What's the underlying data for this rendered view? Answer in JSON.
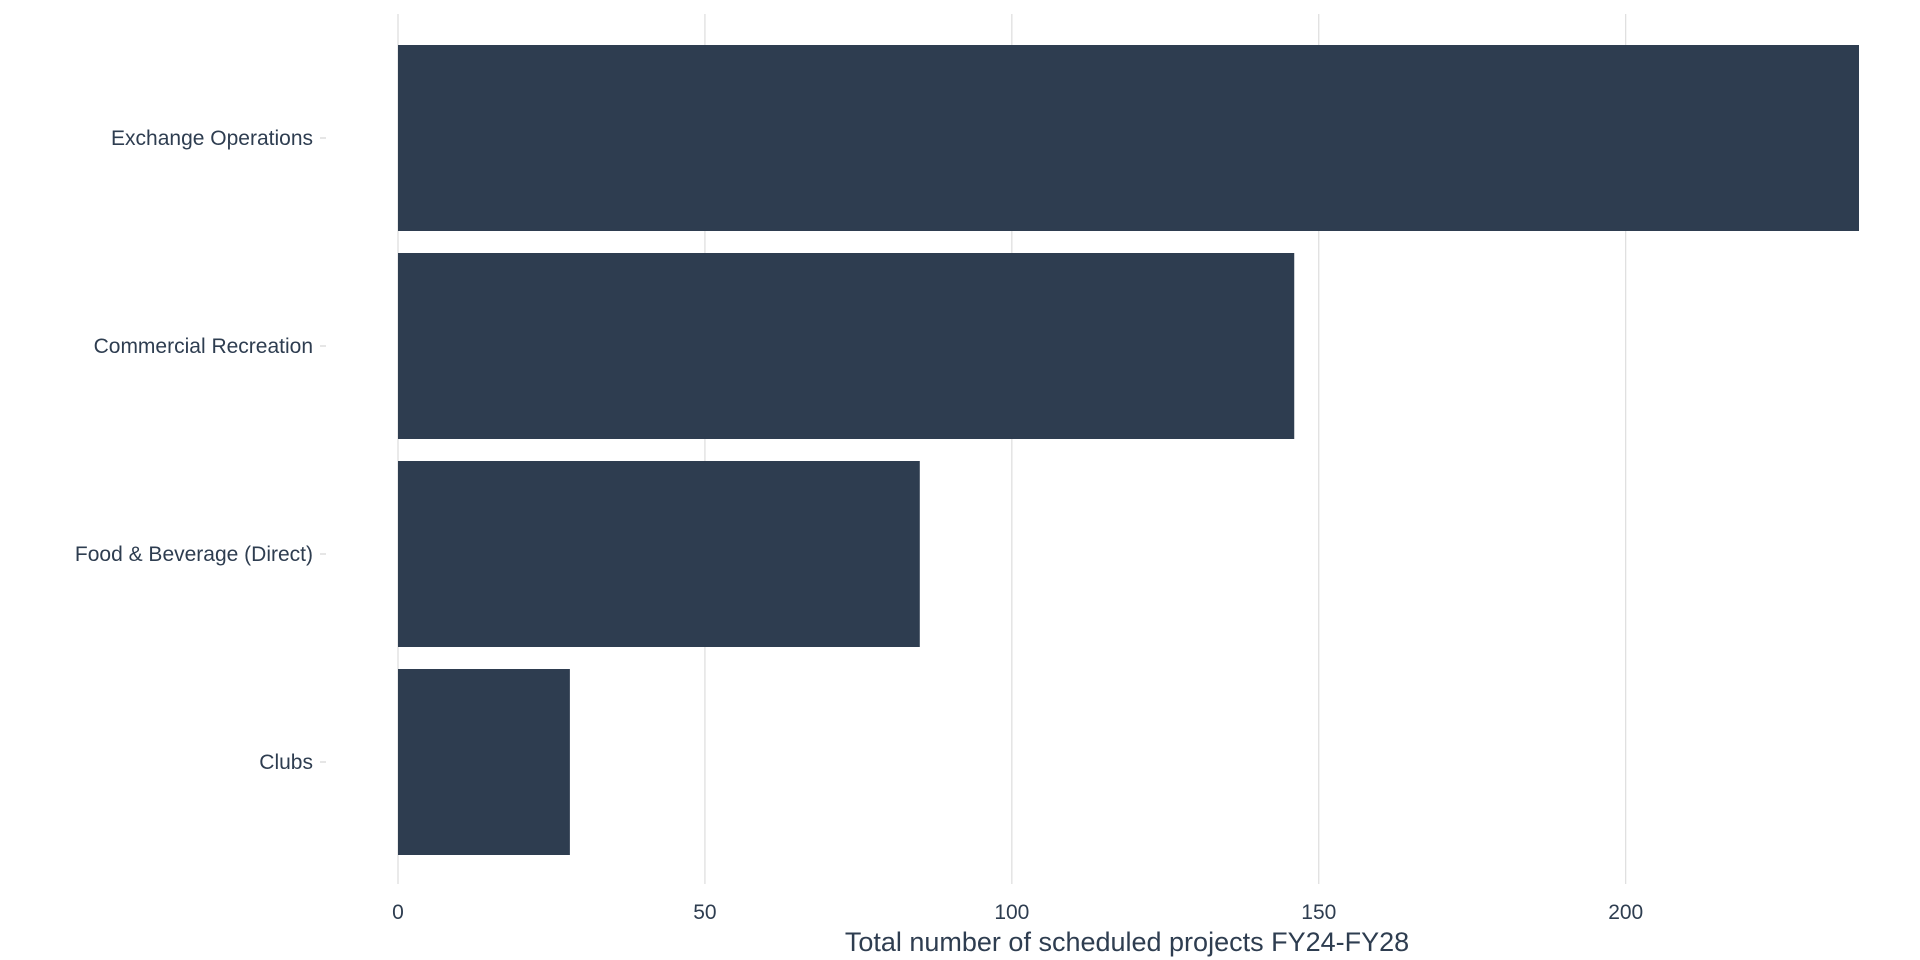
{
  "chart_data": {
    "type": "bar",
    "orientation": "horizontal",
    "categories": [
      "Exchange Operations",
      "Commercial Recreation",
      "Food & Beverage (Direct)",
      "Clubs"
    ],
    "values": [
      238,
      146,
      85,
      28
    ],
    "title": "",
    "xlabel": "Total number of scheduled projects FY24-FY28",
    "ylabel": "",
    "xlim": [
      0,
      238
    ],
    "x_ticks": [
      0,
      50,
      100,
      150,
      200
    ],
    "grid": "vertical-major",
    "legend": "none",
    "bar_color": "#2e3d50",
    "text_color": "#2e3d50",
    "grid_color": "#d6d6d6"
  }
}
